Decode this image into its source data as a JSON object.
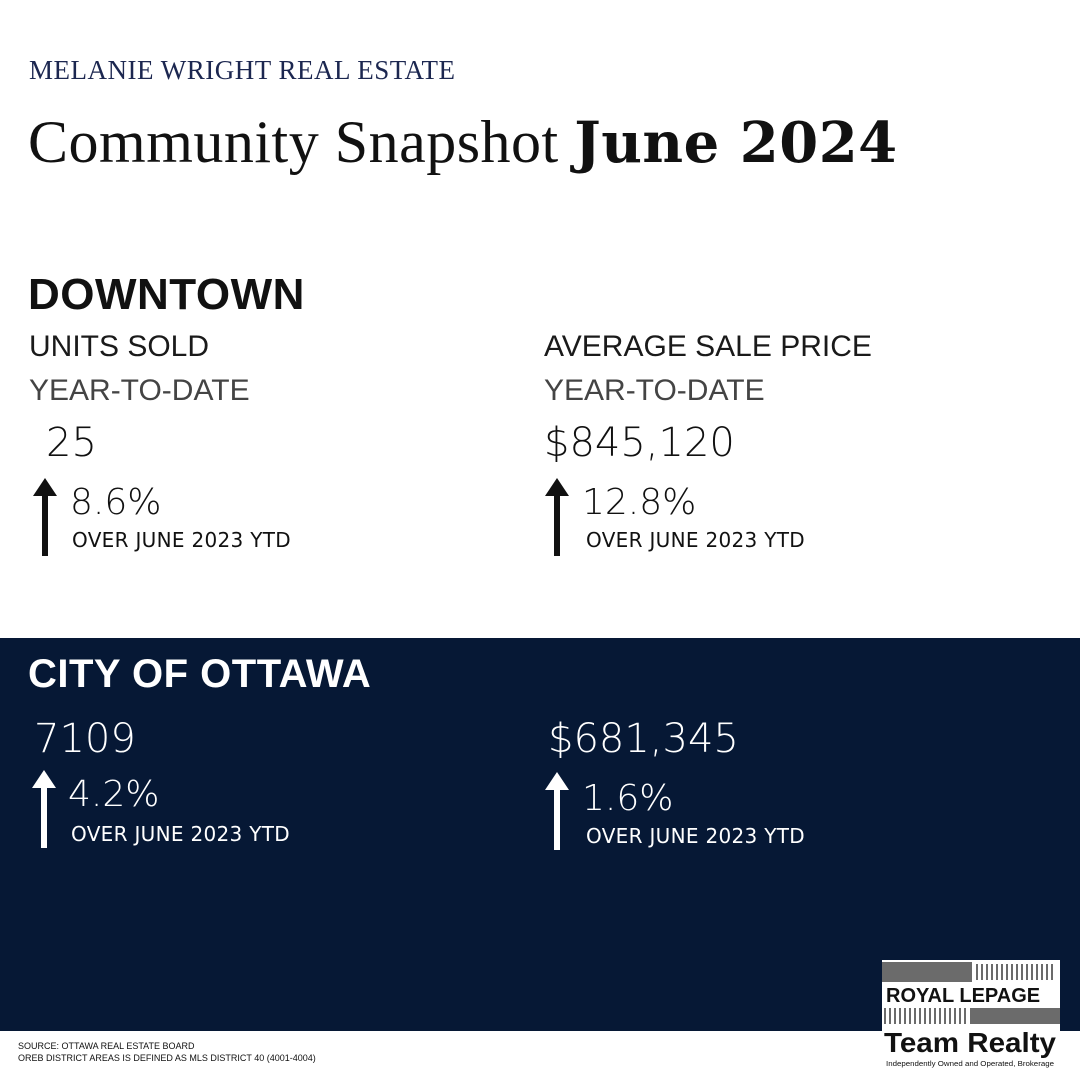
{
  "brand": "MELANIE WRIGHT REAL ESTATE",
  "title": {
    "prefix": "Community Snapshot",
    "date": "June 2024"
  },
  "downtown": {
    "heading": "DOWNTOWN",
    "units": {
      "label": "UNITS SOLD",
      "sublabel": "YEAR-TO-DATE",
      "value": "25",
      "change": "8.6%",
      "change_note": "OVER JUNE 2023 YTD"
    },
    "price": {
      "label": "AVERAGE SALE PRICE",
      "sublabel": "YEAR-TO-DATE",
      "value": "$845,120",
      "change": "12.8%",
      "change_note": "OVER JUNE 2023 YTD"
    }
  },
  "ottawa": {
    "heading": "CITY OF OTTAWA",
    "units": {
      "value": "7109",
      "change": "4.2%",
      "change_note": "OVER JUNE 2023 YTD"
    },
    "price": {
      "value": "$681,345",
      "change": "1.6%",
      "change_note": "OVER JUNE 2023 YTD"
    }
  },
  "footer": {
    "source": "SOURCE: OTTAWA REAL ESTATE BOARD",
    "district": "OREB DISTRICT AREAS IS DEFINED AS MLS DISTRICT 40 (4001-4004)"
  },
  "logo": {
    "line1": "ROYAL LEPAGE",
    "line2": "Team Realty",
    "line3": "Independently Owned and Operated, Brokerage"
  },
  "colors": {
    "navy": "#061835",
    "brand_text": "#1c2750",
    "background": "#ffffff"
  },
  "icons": [
    "arrow-up-icon"
  ]
}
